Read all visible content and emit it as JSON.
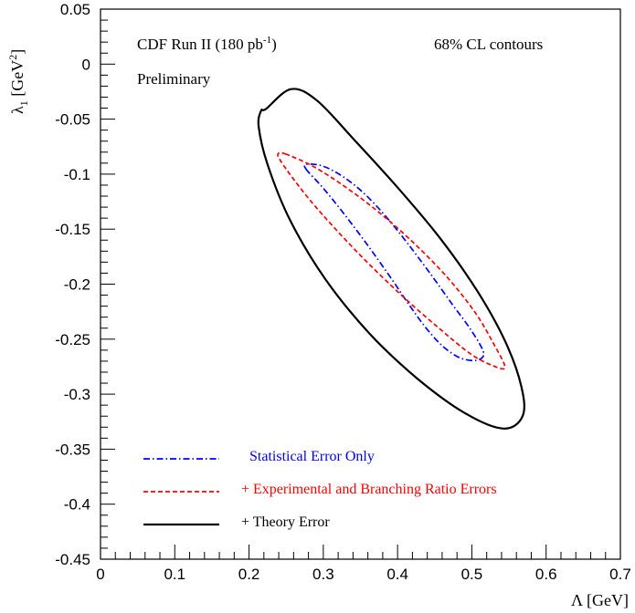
{
  "chart_data": {
    "type": "line",
    "title": "",
    "xlabel": "Λ [GeV]",
    "ylabel": "λ1 [GeV2]",
    "xlim": [
      0,
      0.7
    ],
    "ylim": [
      -0.45,
      0.05
    ],
    "grid": false,
    "legend_position": "bottom-left",
    "x_tick_labels": [
      "0",
      "0.1",
      "0.2",
      "0.3",
      "0.4",
      "0.5",
      "0.6",
      "0.7"
    ],
    "x_tick_values": [
      0,
      0.1,
      0.2,
      0.3,
      0.4,
      0.5,
      0.6,
      0.7
    ],
    "y_tick_labels": [
      "0.05",
      "0",
      "-0.05",
      "-0.1",
      "-0.15",
      "-0.2",
      "-0.25",
      "-0.3",
      "-0.35",
      "-0.4",
      "-0.45"
    ],
    "y_tick_values": [
      0.05,
      0,
      -0.05,
      -0.1,
      -0.15,
      -0.2,
      -0.25,
      -0.3,
      -0.35,
      -0.4,
      -0.45
    ],
    "annotations": {
      "experiment": "CDF Run II (180 pb",
      "experiment_exp": "-1",
      "experiment_close": ")",
      "status": "Preliminary",
      "confidence": "68% CL contours"
    },
    "series": [
      {
        "name": "Statistical Error Only",
        "color": "#0000ff",
        "style": "dash-dot",
        "points": [
          [
            0.2765,
            -0.0952
          ],
          [
            0.2993,
            -0.1123
          ],
          [
            0.3287,
            -0.1368
          ],
          [
            0.3607,
            -0.1655
          ],
          [
            0.3914,
            -0.1948
          ],
          [
            0.4179,
            -0.2211
          ],
          [
            0.4408,
            -0.2419
          ],
          [
            0.462,
            -0.2571
          ],
          [
            0.4841,
            -0.267
          ],
          [
            0.5059,
            -0.2692
          ],
          [
            0.5158,
            -0.2627
          ],
          [
            0.4999,
            -0.2427
          ],
          [
            0.4733,
            -0.218
          ],
          [
            0.444,
            -0.1904
          ],
          [
            0.4136,
            -0.163
          ],
          [
            0.3839,
            -0.1383
          ],
          [
            0.3556,
            -0.118
          ],
          [
            0.3281,
            -0.103
          ],
          [
            0.3007,
            -0.093
          ],
          [
            0.2781,
            -0.0909
          ]
        ]
      },
      {
        "name": "+ Experimental and Branching Ratio Errors",
        "color": "#ff0000",
        "style": "dashed",
        "points": [
          [
            0.2489,
            -0.0816
          ],
          [
            0.286,
            -0.0929
          ],
          [
            0.3295,
            -0.1115
          ],
          [
            0.3767,
            -0.1357
          ],
          [
            0.4242,
            -0.1641
          ],
          [
            0.4683,
            -0.1949
          ],
          [
            0.5052,
            -0.2265
          ],
          [
            0.5315,
            -0.2568
          ],
          [
            0.5445,
            -0.2749
          ],
          [
            0.534,
            -0.2756
          ],
          [
            0.5,
            -0.2642
          ],
          [
            0.4539,
            -0.239
          ],
          [
            0.4061,
            -0.2106
          ],
          [
            0.3598,
            -0.1806
          ],
          [
            0.3176,
            -0.1508
          ],
          [
            0.2819,
            -0.1235
          ],
          [
            0.255,
            -0.1001
          ],
          [
            0.2406,
            -0.0858
          ],
          [
            0.2395,
            -0.0812
          ]
        ]
      },
      {
        "name": "+ Theory Error",
        "color": "#000000",
        "style": "solid",
        "points": [
          [
            0.223,
            -0.0406
          ],
          [
            0.2565,
            -0.0227
          ],
          [
            0.2915,
            -0.0331
          ],
          [
            0.3419,
            -0.069
          ],
          [
            0.4002,
            -0.1123
          ],
          [
            0.4576,
            -0.1586
          ],
          [
            0.5071,
            -0.206
          ],
          [
            0.5451,
            -0.2523
          ],
          [
            0.5668,
            -0.2934
          ],
          [
            0.5683,
            -0.3201
          ],
          [
            0.5422,
            -0.3313
          ],
          [
            0.4911,
            -0.3174
          ],
          [
            0.4267,
            -0.2859
          ],
          [
            0.3617,
            -0.2445
          ],
          [
            0.3024,
            -0.1951
          ],
          [
            0.2553,
            -0.1419
          ],
          [
            0.2251,
            -0.0916
          ],
          [
            0.213,
            -0.0568
          ],
          [
            0.2163,
            -0.0423
          ]
        ]
      }
    ],
    "legend": [
      {
        "label": "Statistical Error Only",
        "color": "#0000ff",
        "style": "dash-dot"
      },
      {
        "label": "+ Experimental and Branching Ratio Errors",
        "color": "#ff0000",
        "style": "dashed"
      },
      {
        "label": "+ Theory Error",
        "color": "#000000",
        "style": "solid"
      }
    ]
  }
}
